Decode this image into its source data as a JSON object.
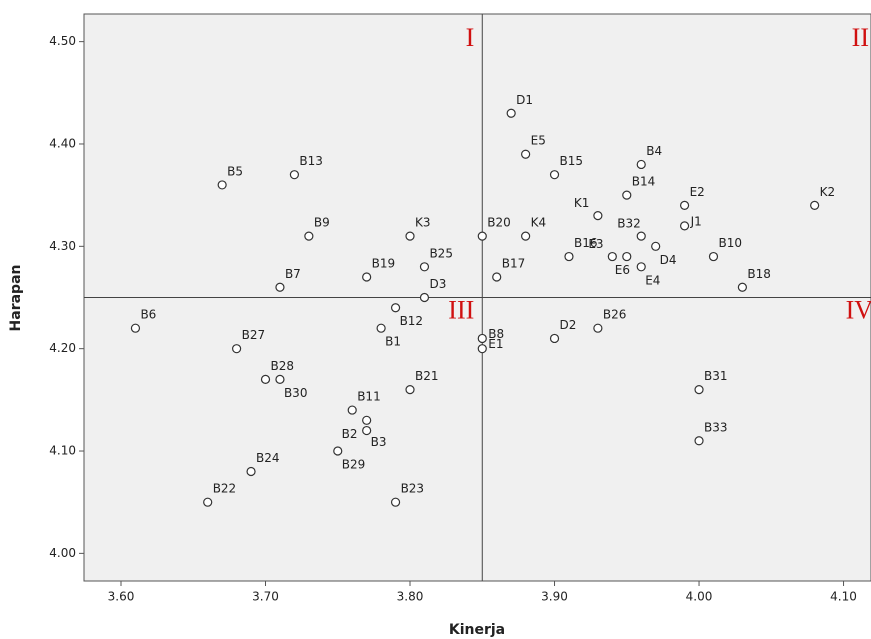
{
  "chart_data": {
    "type": "scatter",
    "x_label": "Kinerja",
    "y_label": "Harapan",
    "quadrant_labels": [
      "I",
      "II",
      "III",
      "IV"
    ],
    "reference_lines": {
      "x": 3.85,
      "y": 4.25
    },
    "xlim": [
      3.5744,
      4.119
    ],
    "ylim": [
      3.973,
      4.527
    ],
    "xticks": [
      {
        "value": 3.6,
        "label": "3.60"
      },
      {
        "value": 3.7,
        "label": "3.70"
      },
      {
        "value": 3.8,
        "label": "3.80"
      },
      {
        "value": 3.9,
        "label": "3.90"
      },
      {
        "value": 4.0,
        "label": "4.00"
      },
      {
        "value": 4.1,
        "label": "4.10"
      }
    ],
    "yticks": [
      {
        "value": 4.0,
        "label": "4.00"
      },
      {
        "value": 4.1,
        "label": "4.10"
      },
      {
        "value": 4.2,
        "label": "4.20"
      },
      {
        "value": 4.3,
        "label": "4.30"
      },
      {
        "value": 4.4,
        "label": "4.40"
      },
      {
        "value": 4.5,
        "label": "4.50"
      }
    ],
    "point_labels": [
      "B5",
      "B13",
      "B9",
      "K3",
      "B19",
      "B25",
      "D3",
      "B7",
      "B12",
      "B1",
      "B6",
      "B27",
      "B28",
      "B30",
      "B21",
      "B11",
      "B3",
      "B2",
      "B29",
      "B24",
      "B22",
      "B23",
      "D1",
      "E5",
      "B15",
      "B4",
      "B14",
      "E2",
      "K2",
      "K1",
      "J1",
      "B32",
      "B20",
      "K4",
      "D4",
      "B16",
      "E3",
      "E6",
      "B10",
      "E4",
      "B17",
      "B18",
      "B8",
      "E1",
      "D2",
      "B26",
      "B31",
      "B33"
    ],
    "x": [
      3.67,
      3.72,
      3.73,
      3.8,
      3.77,
      3.81,
      3.81,
      3.71,
      3.79,
      3.78,
      3.61,
      3.68,
      3.7,
      3.71,
      3.8,
      3.76,
      3.77,
      3.77,
      3.75,
      3.69,
      3.66,
      3.79,
      3.87,
      3.88,
      3.9,
      3.96,
      3.95,
      3.99,
      4.08,
      3.93,
      3.99,
      3.96,
      3.85,
      3.88,
      3.97,
      3.91,
      3.94,
      3.95,
      4.01,
      3.96,
      3.86,
      4.03,
      3.85,
      3.85,
      3.9,
      3.93,
      4.0,
      4.0
    ],
    "y": [
      4.36,
      4.37,
      4.31,
      4.31,
      4.27,
      4.28,
      4.25,
      4.26,
      4.24,
      4.22,
      4.22,
      4.2,
      4.17,
      4.17,
      4.16,
      4.14,
      4.13,
      4.12,
      4.1,
      4.08,
      4.05,
      4.05,
      4.43,
      4.39,
      4.37,
      4.38,
      4.35,
      4.34,
      4.34,
      4.33,
      4.32,
      4.31,
      4.31,
      4.31,
      4.3,
      4.29,
      4.29,
      4.29,
      4.29,
      4.28,
      4.27,
      4.26,
      4.21,
      4.2,
      4.21,
      4.22,
      4.16,
      4.11
    ],
    "marker_color": "#333333",
    "plot_background": "#f0f0f0"
  }
}
